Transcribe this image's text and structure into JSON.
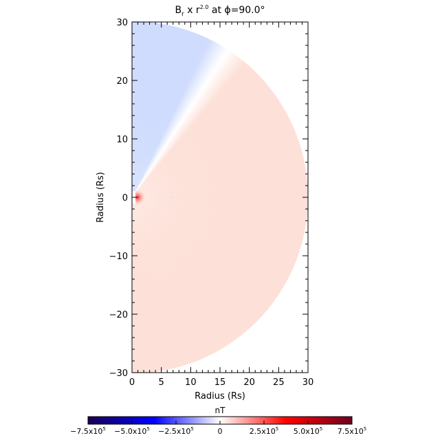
{
  "chart_data": {
    "type": "heatmap",
    "title": {
      "main": "B",
      "sub": "r",
      "mid": " x r",
      "sup": "2.0",
      "tail": " at ϕ=90.0°"
    },
    "xlabel": "Radius (Rs)",
    "ylabel": "Radius (Rs)",
    "xlim": [
      0,
      30
    ],
    "ylim": [
      -30,
      30
    ],
    "xticks": [
      "0",
      "5",
      "10",
      "15",
      "20",
      "25",
      "30"
    ],
    "yticks": [
      "-30",
      "-20",
      "-10",
      "0",
      "10",
      "20",
      "30"
    ],
    "domain": "half-disk, radius 0 to 30 Rs",
    "field_description_regions": [
      {
        "region": "polar angle near +z (above ~60° latitude)",
        "sign": "negative",
        "approx_value": -150000.0
      },
      {
        "region": "below current sheet (~57° latitude)",
        "sign": "positive",
        "approx_value": 100000.0
      },
      {
        "region": "inner boundary near r=1",
        "sign": "positive",
        "approx_value": 600000.0
      }
    ],
    "colorbar": {
      "label": "nT",
      "range": [
        -750000,
        750000
      ],
      "tick_labels": [
        {
          "mant": "−7.5x10",
          "exp": "5"
        },
        {
          "mant": "−5.0x10",
          "exp": "5"
        },
        {
          "mant": "−2.5x10",
          "exp": "5"
        },
        {
          "mant": "0",
          "exp": ""
        },
        {
          "mant": "2.5x10",
          "exp": "5"
        },
        {
          "mant": "5.0x10",
          "exp": "5"
        },
        {
          "mant": "7.5x10",
          "exp": "5"
        }
      ],
      "colors": [
        "#1a0050",
        "#0000ff",
        "#ffffff",
        "#ff0000",
        "#6e0020"
      ]
    }
  }
}
